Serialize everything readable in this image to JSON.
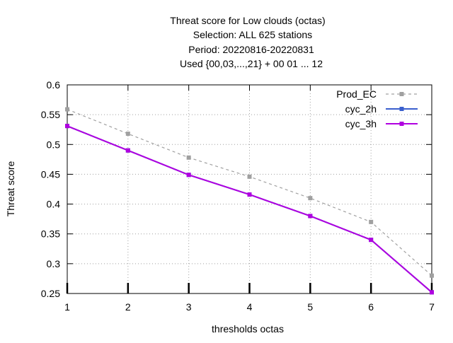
{
  "chart_data": {
    "type": "line",
    "title_lines": [
      "Threat score  for Low clouds (octas)",
      "Selection: ALL    625 stations",
      "Period: 20220816-20220831",
      "Used {00,03,...,21} + 00 01 ... 12"
    ],
    "xlabel": "thresholds octas",
    "ylabel": "Threat score",
    "x": [
      1,
      2,
      3,
      4,
      5,
      6,
      7
    ],
    "xlim": [
      1,
      7
    ],
    "ylim": [
      0.25,
      0.6
    ],
    "yticks": [
      0.25,
      0.3,
      0.35,
      0.4,
      0.45,
      0.5,
      0.55,
      0.6
    ],
    "ytick_labels": [
      "0.25",
      "0.3",
      "0.35",
      "0.4",
      "0.45",
      "0.5",
      "0.55",
      "0.6"
    ],
    "xticks": [
      1,
      2,
      3,
      4,
      5,
      6,
      7
    ],
    "xtick_labels": [
      "1",
      "2",
      "3",
      "4",
      "5",
      "6",
      "7"
    ],
    "grid": true,
    "legend_position": "top-right",
    "series": [
      {
        "name": "Prod_EC",
        "color": "#a0a0a0",
        "dashed": true,
        "values": [
          0.559,
          0.518,
          0.478,
          0.446,
          0.41,
          0.37,
          0.28
        ]
      },
      {
        "name": "cyc_2h",
        "color": "#3a5fcd",
        "dashed": false,
        "values": [
          0.531,
          0.49,
          0.449,
          0.416,
          0.38,
          0.34,
          0.252
        ]
      },
      {
        "name": "cyc_3h",
        "color": "#b000e0",
        "dashed": false,
        "values": [
          0.531,
          0.49,
          0.449,
          0.416,
          0.38,
          0.34,
          0.252
        ]
      }
    ]
  }
}
